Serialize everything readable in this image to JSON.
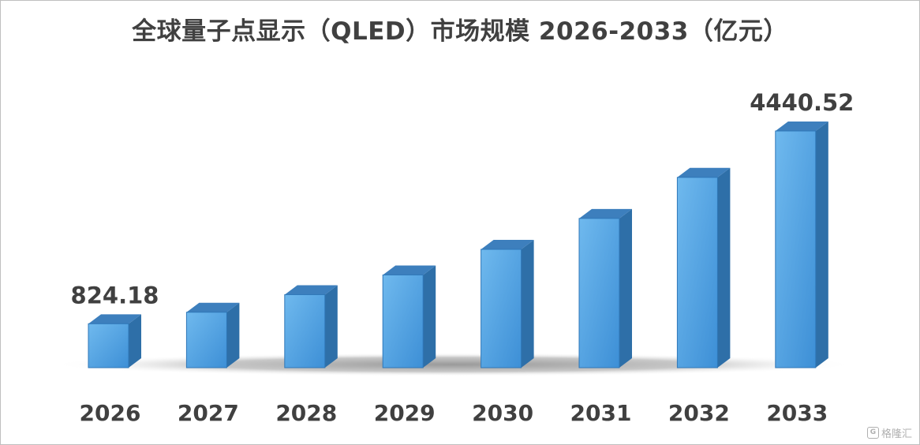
{
  "chart_data": {
    "type": "bar",
    "title": "全球量子点显示（QLED）市场规模 2026-2033（亿元）",
    "categories": [
      "2026",
      "2027",
      "2028",
      "2029",
      "2030",
      "2031",
      "2032",
      "2033"
    ],
    "values": [
      824.18,
      1040,
      1370,
      1740,
      2220,
      2800,
      3570,
      4440.52
    ],
    "data_labels": [
      "824.18",
      "",
      "",
      "",
      "",
      "",
      "",
      "4440.52"
    ],
    "xlabel": "",
    "ylabel": "",
    "ylim": [
      0,
      4800
    ],
    "grid": false,
    "legend": "none",
    "bar_style": "3d",
    "colors": {
      "bar_front": "#5aabe6",
      "bar_top": "#3d7fbd",
      "bar_side": "#2e6fa8",
      "text": "#404040"
    }
  },
  "watermark": {
    "icon": "gelonghui-logo-icon",
    "text": "格隆汇"
  }
}
